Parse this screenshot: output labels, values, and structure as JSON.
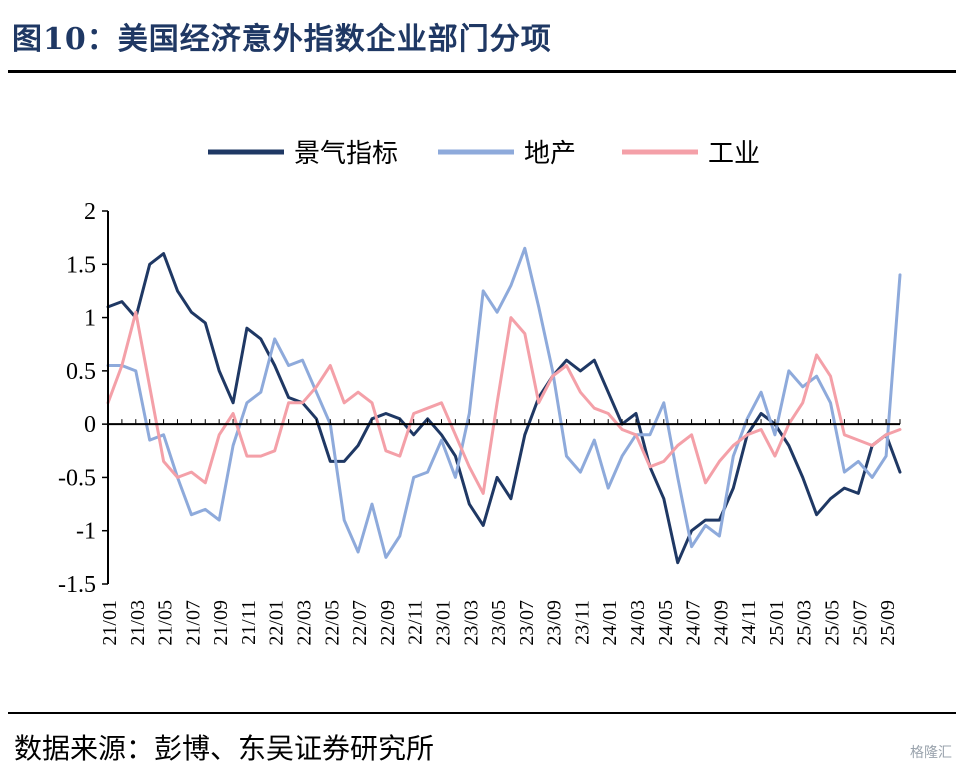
{
  "title": "图10：美国经济意外指数企业部门分项",
  "source": "数据来源：彭博、东吴证券研究所",
  "watermark": "格隆汇",
  "chart_data": {
    "type": "line",
    "x_tick_labels": [
      "21/01",
      "21/03",
      "21/05",
      "21/07",
      "21/09",
      "21/11",
      "22/01",
      "22/03",
      "22/05",
      "22/07",
      "22/09",
      "22/11",
      "23/01",
      "23/03",
      "23/05",
      "23/07",
      "23/09",
      "23/11",
      "24/01",
      "24/03",
      "24/05",
      "24/07",
      "24/09",
      "24/11",
      "25/01",
      "25/03",
      "25/05",
      "25/07",
      "25/09"
    ],
    "x_range": [
      "2021-01",
      "2025-10"
    ],
    "ylim": [
      -1.5,
      2
    ],
    "yticks": [
      "2",
      "1.5",
      "1",
      "0.5",
      "0",
      "-0.5",
      "-1",
      "-1.5"
    ],
    "legend_position": "top",
    "grid": false,
    "series": [
      {
        "name": "景气指标",
        "color": "#1f3864",
        "x": [
          "2021-01",
          "2021-02",
          "2021-03",
          "2021-04",
          "2021-05",
          "2021-06",
          "2021-07",
          "2021-08",
          "2021-09",
          "2021-10",
          "2021-11",
          "2021-12",
          "2022-01",
          "2022-02",
          "2022-03",
          "2022-04",
          "2022-05",
          "2022-06",
          "2022-07",
          "2022-08",
          "2022-09",
          "2022-10",
          "2022-11",
          "2022-12",
          "2023-01",
          "2023-02",
          "2023-03",
          "2023-04",
          "2023-05",
          "2023-06",
          "2023-07",
          "2023-08",
          "2023-09",
          "2023-10",
          "2023-11",
          "2023-12",
          "2024-01",
          "2024-02",
          "2024-03",
          "2024-04",
          "2024-05",
          "2024-06",
          "2024-07",
          "2024-08",
          "2024-09",
          "2024-10",
          "2024-11",
          "2024-12",
          "2025-01",
          "2025-02",
          "2025-03",
          "2025-04",
          "2025-05",
          "2025-06",
          "2025-07",
          "2025-08",
          "2025-09",
          "2025-10"
        ],
        "values": [
          1.1,
          1.15,
          1.0,
          1.5,
          1.6,
          1.25,
          1.05,
          0.95,
          0.5,
          0.2,
          0.9,
          0.8,
          0.55,
          0.25,
          0.2,
          0.05,
          -0.35,
          -0.35,
          -0.2,
          0.05,
          0.1,
          0.05,
          -0.1,
          0.05,
          -0.1,
          -0.3,
          -0.75,
          -0.95,
          -0.5,
          -0.7,
          -0.1,
          0.25,
          0.45,
          0.6,
          0.5,
          0.6,
          0.3,
          0.0,
          0.1,
          -0.4,
          -0.7,
          -1.3,
          -1.0,
          -0.9,
          -0.9,
          -0.6,
          -0.1,
          0.1,
          0.0,
          -0.2,
          -0.5,
          -0.85,
          -0.7,
          -0.6,
          -0.65,
          -0.2,
          -0.1,
          -0.45
        ]
      },
      {
        "name": "地产",
        "color": "#8eaadb",
        "x": [
          "2021-01",
          "2021-02",
          "2021-03",
          "2021-04",
          "2021-05",
          "2021-06",
          "2021-07",
          "2021-08",
          "2021-09",
          "2021-10",
          "2021-11",
          "2021-12",
          "2022-01",
          "2022-02",
          "2022-03",
          "2022-04",
          "2022-05",
          "2022-06",
          "2022-07",
          "2022-08",
          "2022-09",
          "2022-10",
          "2022-11",
          "2022-12",
          "2023-01",
          "2023-02",
          "2023-03",
          "2023-04",
          "2023-05",
          "2023-06",
          "2023-07",
          "2023-08",
          "2023-09",
          "2023-10",
          "2023-11",
          "2023-12",
          "2024-01",
          "2024-02",
          "2024-03",
          "2024-04",
          "2024-05",
          "2024-06",
          "2024-07",
          "2024-08",
          "2024-09",
          "2024-10",
          "2024-11",
          "2024-12",
          "2025-01",
          "2025-02",
          "2025-03",
          "2025-04",
          "2025-05",
          "2025-06",
          "2025-07",
          "2025-08",
          "2025-09",
          "2025-10"
        ],
        "values": [
          0.55,
          0.55,
          0.5,
          -0.15,
          -0.1,
          -0.5,
          -0.85,
          -0.8,
          -0.9,
          -0.2,
          0.2,
          0.3,
          0.8,
          0.55,
          0.6,
          0.3,
          0.0,
          -0.9,
          -1.2,
          -0.75,
          -1.25,
          -1.05,
          -0.5,
          -0.45,
          -0.15,
          -0.5,
          0.1,
          1.25,
          1.05,
          1.3,
          1.65,
          1.1,
          0.5,
          -0.3,
          -0.45,
          -0.15,
          -0.6,
          -0.3,
          -0.1,
          -0.1,
          0.2,
          -0.5,
          -1.15,
          -0.95,
          -1.05,
          -0.3,
          0.05,
          0.3,
          -0.1,
          0.5,
          0.35,
          0.45,
          0.2,
          -0.45,
          -0.35,
          -0.5,
          -0.3,
          1.4
        ]
      },
      {
        "name": "工业",
        "color": "#f4a0a8",
        "x": [
          "2021-01",
          "2021-02",
          "2021-03",
          "2021-04",
          "2021-05",
          "2021-06",
          "2021-07",
          "2021-08",
          "2021-09",
          "2021-10",
          "2021-11",
          "2021-12",
          "2022-01",
          "2022-02",
          "2022-03",
          "2022-04",
          "2022-05",
          "2022-06",
          "2022-07",
          "2022-08",
          "2022-09",
          "2022-10",
          "2022-11",
          "2022-12",
          "2023-01",
          "2023-02",
          "2023-03",
          "2023-04",
          "2023-05",
          "2023-06",
          "2023-07",
          "2023-08",
          "2023-09",
          "2023-10",
          "2023-11",
          "2023-12",
          "2024-01",
          "2024-02",
          "2024-03",
          "2024-04",
          "2024-05",
          "2024-06",
          "2024-07",
          "2024-08",
          "2024-09",
          "2024-10",
          "2024-11",
          "2024-12",
          "2025-01",
          "2025-02",
          "2025-03",
          "2025-04",
          "2025-05",
          "2025-06",
          "2025-07",
          "2025-08",
          "2025-09",
          "2025-10"
        ],
        "values": [
          0.2,
          0.55,
          1.05,
          0.35,
          -0.35,
          -0.5,
          -0.45,
          -0.55,
          -0.1,
          0.1,
          -0.3,
          -0.3,
          -0.25,
          0.2,
          0.2,
          0.35,
          0.55,
          0.2,
          0.3,
          0.2,
          -0.25,
          -0.3,
          0.1,
          0.15,
          0.2,
          -0.1,
          -0.4,
          -0.65,
          0.2,
          1.0,
          0.85,
          0.2,
          0.45,
          0.55,
          0.3,
          0.15,
          0.1,
          -0.05,
          -0.1,
          -0.4,
          -0.35,
          -0.2,
          -0.1,
          -0.55,
          -0.35,
          -0.2,
          -0.1,
          -0.05,
          -0.3,
          0.0,
          0.2,
          0.65,
          0.45,
          -0.1,
          -0.15,
          -0.2,
          -0.1,
          -0.05
        ]
      }
    ]
  }
}
